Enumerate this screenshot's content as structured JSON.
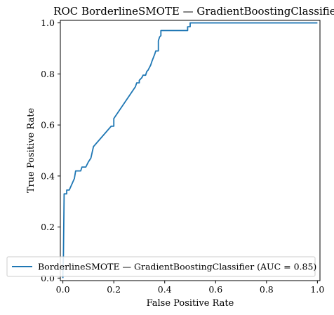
{
  "chart_data": {
    "type": "line",
    "title": "ROC BorderlineSMOTE — GradientBoostingClassifier",
    "xlabel": "False Positive Rate",
    "ylabel": "True Positive Rate",
    "xlim": [
      -0.01,
      1.01
    ],
    "ylim": [
      -0.01,
      1.01
    ],
    "x_ticks": [
      0.0,
      0.2,
      0.4,
      0.6,
      0.8,
      1.0
    ],
    "x_tick_labels": [
      "0.0",
      "0.2",
      "0.4",
      "0.6",
      "0.8",
      "1.0"
    ],
    "y_ticks": [
      0.0,
      0.2,
      0.4,
      0.6,
      0.8,
      1.0
    ],
    "y_tick_labels": [
      "0.0",
      "0.2",
      "0.4",
      "0.6",
      "0.8",
      "1.0"
    ],
    "grid": false,
    "legend_position": "lower-right",
    "series": [
      {
        "name": "BorderlineSMOTE — GradientBoostingClassifier (AUC = 0.85)",
        "color": "#1f77b4",
        "points": [
          [
            0.0,
            0.0
          ],
          [
            0.0,
            0.02
          ],
          [
            0.002,
            0.09
          ],
          [
            0.005,
            0.33
          ],
          [
            0.015,
            0.33
          ],
          [
            0.015,
            0.345
          ],
          [
            0.025,
            0.345
          ],
          [
            0.045,
            0.39
          ],
          [
            0.05,
            0.42
          ],
          [
            0.07,
            0.42
          ],
          [
            0.075,
            0.435
          ],
          [
            0.09,
            0.435
          ],
          [
            0.1,
            0.455
          ],
          [
            0.11,
            0.47
          ],
          [
            0.12,
            0.515
          ],
          [
            0.19,
            0.595
          ],
          [
            0.2,
            0.595
          ],
          [
            0.2,
            0.625
          ],
          [
            0.285,
            0.75
          ],
          [
            0.29,
            0.765
          ],
          [
            0.3,
            0.765
          ],
          [
            0.3,
            0.775
          ],
          [
            0.31,
            0.785
          ],
          [
            0.315,
            0.795
          ],
          [
            0.325,
            0.795
          ],
          [
            0.33,
            0.81
          ],
          [
            0.335,
            0.815
          ],
          [
            0.345,
            0.835
          ],
          [
            0.35,
            0.85
          ],
          [
            0.36,
            0.875
          ],
          [
            0.365,
            0.89
          ],
          [
            0.375,
            0.89
          ],
          [
            0.375,
            0.93
          ],
          [
            0.38,
            0.945
          ],
          [
            0.385,
            0.95
          ],
          [
            0.385,
            0.97
          ],
          [
            0.49,
            0.97
          ],
          [
            0.49,
            0.985
          ],
          [
            0.5,
            0.985
          ],
          [
            0.5,
            1.0
          ],
          [
            1.0,
            1.0
          ]
        ]
      }
    ]
  }
}
